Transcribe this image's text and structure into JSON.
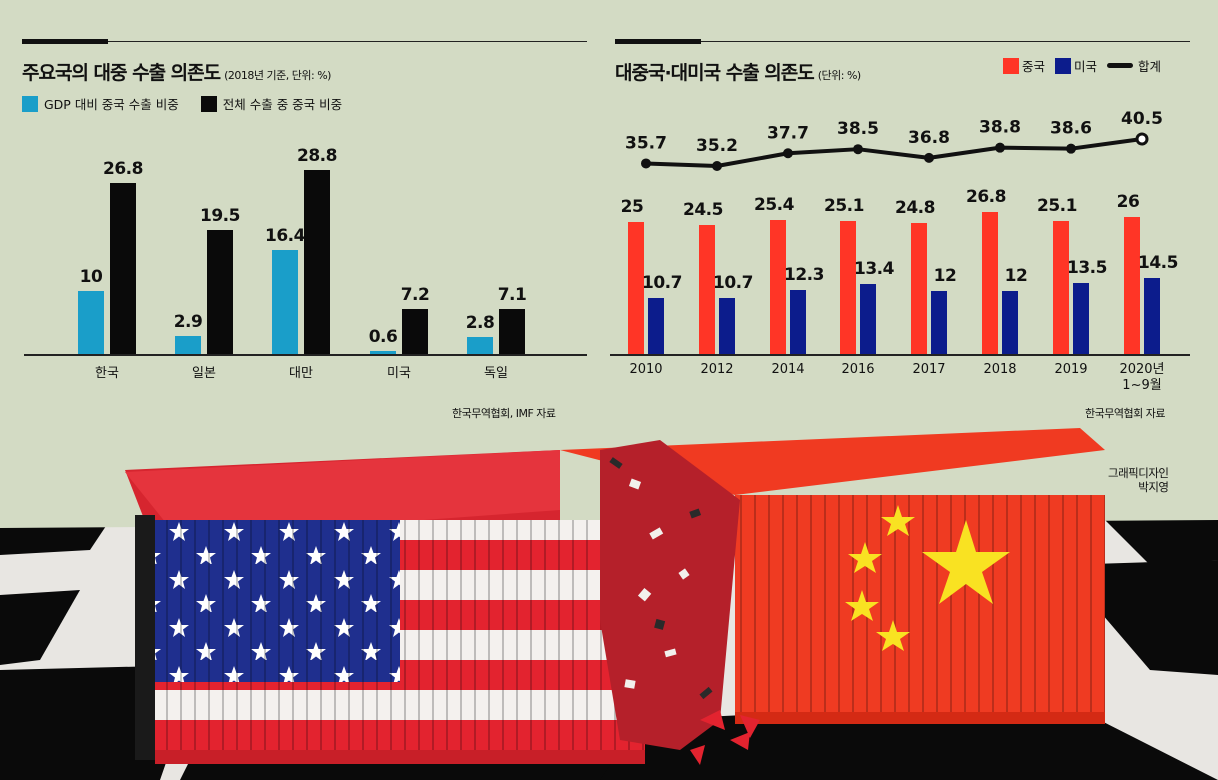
{
  "left_panel": {
    "title": "주요국의 대중 수출 의존도",
    "subtitle": "(2018년 기준, 단위: %)",
    "legend": [
      {
        "label": "GDP 대비 중국 수출 비중",
        "color": "#1a9ec9"
      },
      {
        "label": "전체 수출 중 중국 비중",
        "color": "#0a0a0a"
      }
    ],
    "source": "한국무역협회, IMF 자료"
  },
  "right_panel": {
    "title": "대중국·대미국 수출 의존도",
    "subtitle": "(단위: %)",
    "legend": [
      {
        "label": "중국",
        "color": "#ff3526"
      },
      {
        "label": "미국",
        "color": "#0c1c8c"
      },
      {
        "label": "합계",
        "color": "#111111"
      }
    ],
    "source": "한국무역협회 자료"
  },
  "credit": {
    "line1": "그래픽디자인",
    "line2": "박지영"
  },
  "chart_data": [
    {
      "type": "bar",
      "title": "주요국의 대중 수출 의존도",
      "subtitle": "(2018년 기준, 단위: %)",
      "categories": [
        "한국",
        "일본",
        "대만",
        "미국",
        "독일"
      ],
      "series": [
        {
          "name": "GDP 대비 중국 수출 비중",
          "color": "#1a9ec9",
          "values": [
            10,
            2.9,
            16.4,
            0.6,
            2.8
          ]
        },
        {
          "name": "전체 수출 중 중국 비중",
          "color": "#0a0a0a",
          "values": [
            26.8,
            19.5,
            28.8,
            7.2,
            7.1
          ]
        }
      ],
      "xlabel": "",
      "ylabel": "%",
      "grid": false,
      "legend_position": "top-left",
      "data_labels": true
    },
    {
      "type": "bar+line",
      "title": "대중국·대미국 수출 의존도",
      "subtitle": "(단위: %)",
      "categories": [
        "2010",
        "2012",
        "2014",
        "2016",
        "2017",
        "2018",
        "2019",
        "2020년 1~9월"
      ],
      "series": [
        {
          "name": "중국",
          "type": "bar",
          "color": "#ff3526",
          "values": [
            25,
            24.5,
            25.4,
            25.1,
            24.8,
            26.8,
            25.1,
            26
          ]
        },
        {
          "name": "미국",
          "type": "bar",
          "color": "#0c1c8c",
          "values": [
            10.7,
            10.7,
            12.3,
            13.4,
            12,
            12,
            13.5,
            14.5
          ]
        },
        {
          "name": "합계",
          "type": "line",
          "color": "#111111",
          "values": [
            35.7,
            35.2,
            37.7,
            38.5,
            36.8,
            38.8,
            38.6,
            40.5
          ]
        }
      ],
      "xlabel": "",
      "ylabel": "%",
      "grid": false,
      "legend_position": "top-right",
      "data_labels": true
    }
  ]
}
